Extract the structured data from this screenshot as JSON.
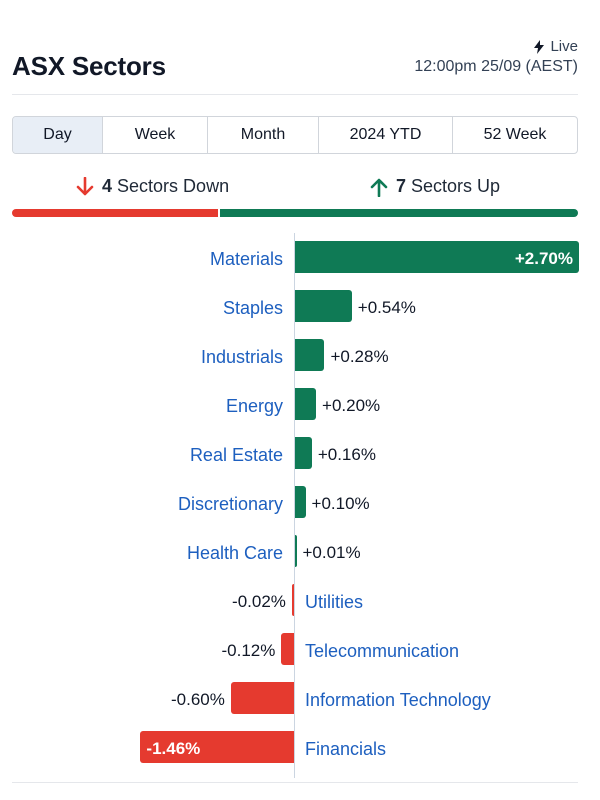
{
  "header": {
    "title": "ASX Sectors",
    "live_label": "Live",
    "timestamp": "12:00pm 25/09 (AEST)"
  },
  "tabs": [
    {
      "label": "Day",
      "active": true
    },
    {
      "label": "Week",
      "active": false
    },
    {
      "label": "Month",
      "active": false
    },
    {
      "label": "2024 YTD",
      "active": false
    },
    {
      "label": "52 Week",
      "active": false
    }
  ],
  "summary": {
    "down_count": "4",
    "down_text": "Sectors Down",
    "up_count": "7",
    "up_text": "Sectors Up"
  },
  "colors": {
    "positive": "#0f7a55",
    "negative": "#e53a2f",
    "label": "#1d5fbf"
  },
  "chart_data": {
    "type": "bar",
    "categories": [
      "Materials",
      "Staples",
      "Industrials",
      "Energy",
      "Real Estate",
      "Discretionary",
      "Health Care",
      "Utilities",
      "Telecommunication",
      "Information Technology",
      "Financials"
    ],
    "values": [
      2.7,
      0.54,
      0.28,
      0.2,
      0.16,
      0.1,
      0.01,
      -0.02,
      -0.12,
      -0.6,
      -1.46
    ],
    "value_labels": [
      "+2.70%",
      "+0.54%",
      "+0.28%",
      "+0.20%",
      "+0.16%",
      "+0.10%",
      "+0.01%",
      "-0.02%",
      "-0.12%",
      "-0.60%",
      "-1.46%"
    ]
  }
}
